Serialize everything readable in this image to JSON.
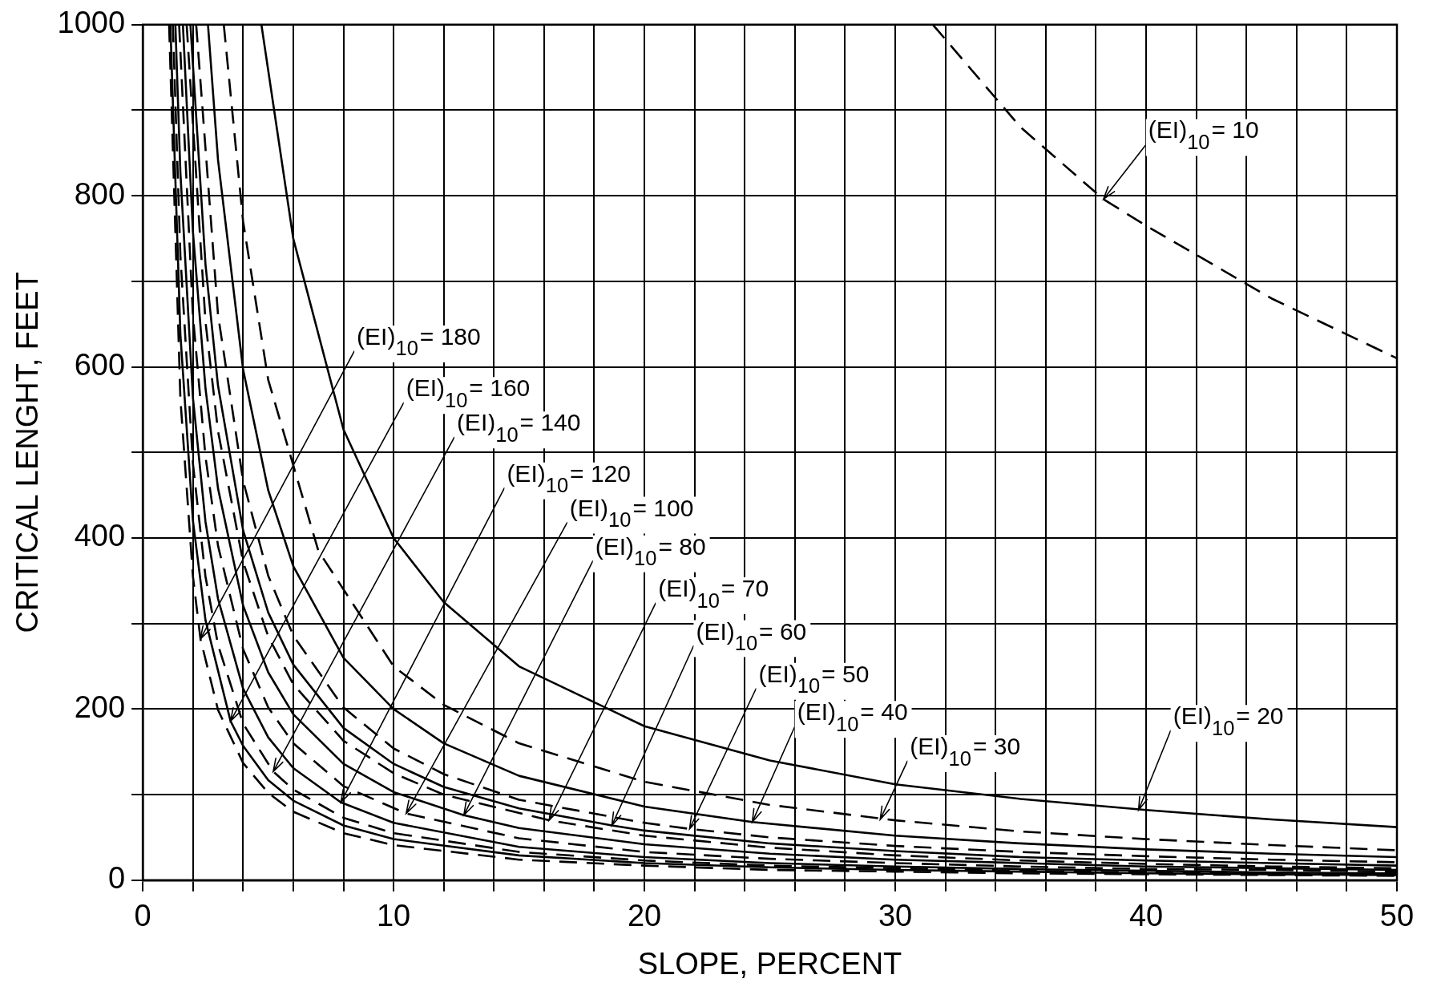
{
  "chart_data": {
    "type": "line",
    "xlabel": "SLOPE, PERCENT",
    "ylabel": "CRITICAL LENGHT, FEET",
    "xlim": [
      0,
      50
    ],
    "ylim": [
      0,
      1000
    ],
    "xticks": [
      0,
      {
        "value": 2,
        "label": null
      },
      {
        "value": 4,
        "label": null
      },
      {
        "value": 6,
        "label": null
      },
      {
        "value": 8,
        "label": null
      },
      10,
      {
        "value": 12,
        "label": null
      },
      {
        "value": 14,
        "label": null
      },
      {
        "value": 16,
        "label": null
      },
      {
        "value": 18,
        "label": null
      },
      20,
      {
        "value": 22,
        "label": null
      },
      {
        "value": 24,
        "label": null
      },
      {
        "value": 26,
        "label": null
      },
      {
        "value": 28,
        "label": null
      },
      30,
      {
        "value": 32,
        "label": null
      },
      {
        "value": 34,
        "label": null
      },
      {
        "value": 36,
        "label": null
      },
      {
        "value": 38,
        "label": null
      },
      40,
      {
        "value": 42,
        "label": null
      },
      {
        "value": 44,
        "label": null
      },
      {
        "value": 46,
        "label": null
      },
      {
        "value": 48,
        "label": null
      },
      50
    ],
    "yticks": [
      0,
      {
        "value": 100,
        "label": null
      },
      200,
      {
        "value": 300,
        "label": null
      },
      400,
      {
        "value": 500,
        "label": null
      },
      600,
      {
        "value": 700,
        "label": null
      },
      800,
      {
        "value": 900,
        "label": null
      },
      1000
    ],
    "grid": true,
    "legend": false,
    "marker": "none",
    "series": [
      {
        "color": "#000000",
        "line_style": "dashed",
        "x": [
          31.5,
          35,
          38.3,
          40,
          45,
          50
        ],
        "values": [
          1000,
          880,
          796,
          765,
          680,
          610
        ]
      },
      {
        "color": "#000000",
        "line_style": "solid",
        "x": [
          4.73,
          6,
          8,
          10,
          12,
          15,
          20,
          25,
          30,
          35,
          40,
          45,
          50
        ],
        "values": [
          1000,
          750,
          527,
          400,
          325,
          250,
          180,
          140,
          112,
          95,
          82,
          71,
          62
        ]
      },
      {
        "color": "#000000",
        "line_style": "dashed",
        "x": [
          3.23,
          4,
          5,
          7,
          10,
          12,
          15,
          20,
          25,
          30,
          35,
          40,
          45,
          50
        ],
        "values": [
          1000,
          770,
          585,
          385,
          250,
          205,
          160,
          115,
          88,
          70,
          57,
          48,
          41,
          35
        ]
      },
      {
        "color": "#000000",
        "line_style": "solid",
        "x": [
          2.6,
          3,
          4,
          5,
          6,
          8,
          10,
          12,
          15,
          20,
          24.3,
          30,
          35,
          40,
          45,
          50
        ],
        "values": [
          1000,
          842,
          597,
          456,
          367,
          260,
          200,
          160,
          122,
          86,
          68,
          52,
          43,
          36,
          31,
          27
        ]
      },
      {
        "color": "#000000",
        "line_style": "dashed",
        "x": [
          2.13,
          3,
          4,
          5,
          6,
          8,
          10,
          12,
          15,
          20,
          21.8,
          25,
          30,
          35,
          40,
          45,
          50
        ],
        "values": [
          1000,
          661,
          467,
          356,
          286,
          202,
          154,
          124,
          94,
          67,
          60,
          50,
          40,
          33,
          28,
          24,
          21
        ]
      },
      {
        "color": "#000000",
        "line_style": "solid",
        "x": [
          1.9,
          2.5,
          3,
          4,
          5,
          6,
          8,
          10,
          12,
          15,
          18.7,
          20,
          25,
          30,
          35,
          40,
          45,
          50
        ],
        "values": [
          1000,
          720,
          578,
          409,
          313,
          252,
          178,
          136,
          109,
          84,
          64,
          58,
          43,
          34,
          27,
          23,
          20,
          17
        ]
      },
      {
        "color": "#000000",
        "line_style": "dashed",
        "x": [
          1.75,
          2.5,
          3,
          4,
          5,
          6,
          8,
          10,
          12,
          16.2,
          20,
          25,
          30,
          35,
          40,
          45,
          50
        ],
        "values": [
          1000,
          653,
          525,
          372,
          285,
          229,
          163,
          125,
          100,
          70,
          52,
          38,
          29,
          23,
          19,
          16,
          14
        ]
      },
      {
        "color": "#000000",
        "line_style": "solid",
        "x": [
          1.6,
          2,
          2.5,
          3,
          4,
          5,
          6,
          8,
          10,
          12.8,
          15,
          20,
          25,
          30,
          35,
          40,
          45,
          50
        ],
        "values": [
          1000,
          758,
          575,
          458,
          321,
          243,
          194,
          136,
          103,
          76,
          61,
          42,
          31,
          24,
          20,
          16,
          14,
          12
        ]
      },
      {
        "color": "#000000",
        "line_style": "dashed",
        "x": [
          1.45,
          2,
          2.5,
          3,
          4,
          5,
          6,
          8,
          10.5,
          15,
          20,
          25,
          30,
          35,
          40,
          45,
          50
        ],
        "values": [
          1000,
          660,
          495,
          391,
          270,
          202,
          160,
          110,
          78,
          49,
          33,
          25,
          20,
          16,
          13,
          12,
          10
        ]
      },
      {
        "color": "#000000",
        "line_style": "solid",
        "x": [
          1.3,
          1.5,
          2,
          2.5,
          3,
          4,
          5,
          6,
          7.9,
          10,
          15,
          20,
          25,
          30,
          35,
          40,
          45,
          50
        ],
        "values": [
          1000,
          827,
          564,
          419,
          329,
          224,
          167,
          131,
          91,
          67,
          39,
          27,
          20,
          16,
          13,
          11,
          9,
          8
        ]
      },
      {
        "color": "#000000",
        "line_style": "dashed",
        "x": [
          1.2,
          1.5,
          2,
          2.5,
          3,
          4,
          5.2,
          6,
          8,
          10,
          15,
          20,
          25,
          30,
          35,
          40,
          45,
          50
        ],
        "values": [
          1000,
          730,
          487,
          355,
          275,
          183,
          127,
          106,
          73,
          55,
          33,
          23,
          17,
          14,
          11,
          9,
          8,
          7
        ]
      },
      {
        "color": "#000000",
        "line_style": "solid",
        "x": [
          1.1,
          1.5,
          2,
          2.5,
          3.5,
          4,
          5,
          6,
          8,
          10,
          15,
          20,
          25,
          30,
          35,
          40,
          45,
          50
        ],
        "values": [
          1000,
          638,
          420,
          304,
          186,
          157,
          117,
          93,
          64,
          48,
          29,
          20,
          15,
          12,
          10,
          8,
          7,
          6
        ]
      },
      {
        "color": "#000000",
        "line_style": "dashed",
        "x": [
          1.05,
          1.5,
          2,
          2.3,
          3,
          4,
          5,
          6,
          8,
          10,
          15,
          20,
          25,
          30,
          35,
          40,
          45,
          50
        ],
        "values": [
          1000,
          563,
          355,
          282,
          199,
          137,
          102,
          80,
          55,
          41,
          24,
          17,
          12,
          10,
          8,
          7,
          6,
          5
        ]
      }
    ],
    "annotations": [
      {
        "text": "(EI)$_{10}$= 10",
        "x": 38.3,
        "y": 796
      },
      {
        "text": "(EI)$_{10}$= 20",
        "x": 39.7,
        "y": 82
      },
      {
        "text": "(EI)$_{10}$= 30",
        "x": 29.4,
        "y": 71
      },
      {
        "text": "(EI)$_{10}$= 40",
        "x": 24.3,
        "y": 68
      },
      {
        "text": "(EI)$_{10}$= 50",
        "x": 21.8,
        "y": 60
      },
      {
        "text": "(EI)$_{10}$= 60",
        "x": 18.7,
        "y": 64
      },
      {
        "text": "(EI)$_{10}$= 70",
        "x": 16.2,
        "y": 70
      },
      {
        "text": "(EI)$_{10}$= 80",
        "x": 12.8,
        "y": 76
      },
      {
        "text": "(EI)$_{10}$= 100",
        "x": 10.5,
        "y": 78
      },
      {
        "text": "(EI)$_{10}$= 120",
        "x": 7.9,
        "y": 91
      },
      {
        "text": "(EI)$_{10}$= 140",
        "x": 5.2,
        "y": 127
      },
      {
        "text": "(EI)$_{10}$= 160",
        "x": 3.5,
        "y": 186
      },
      {
        "text": "(EI)$_{10}$= 180",
        "x": 2.3,
        "y": 282
      }
    ]
  }
}
